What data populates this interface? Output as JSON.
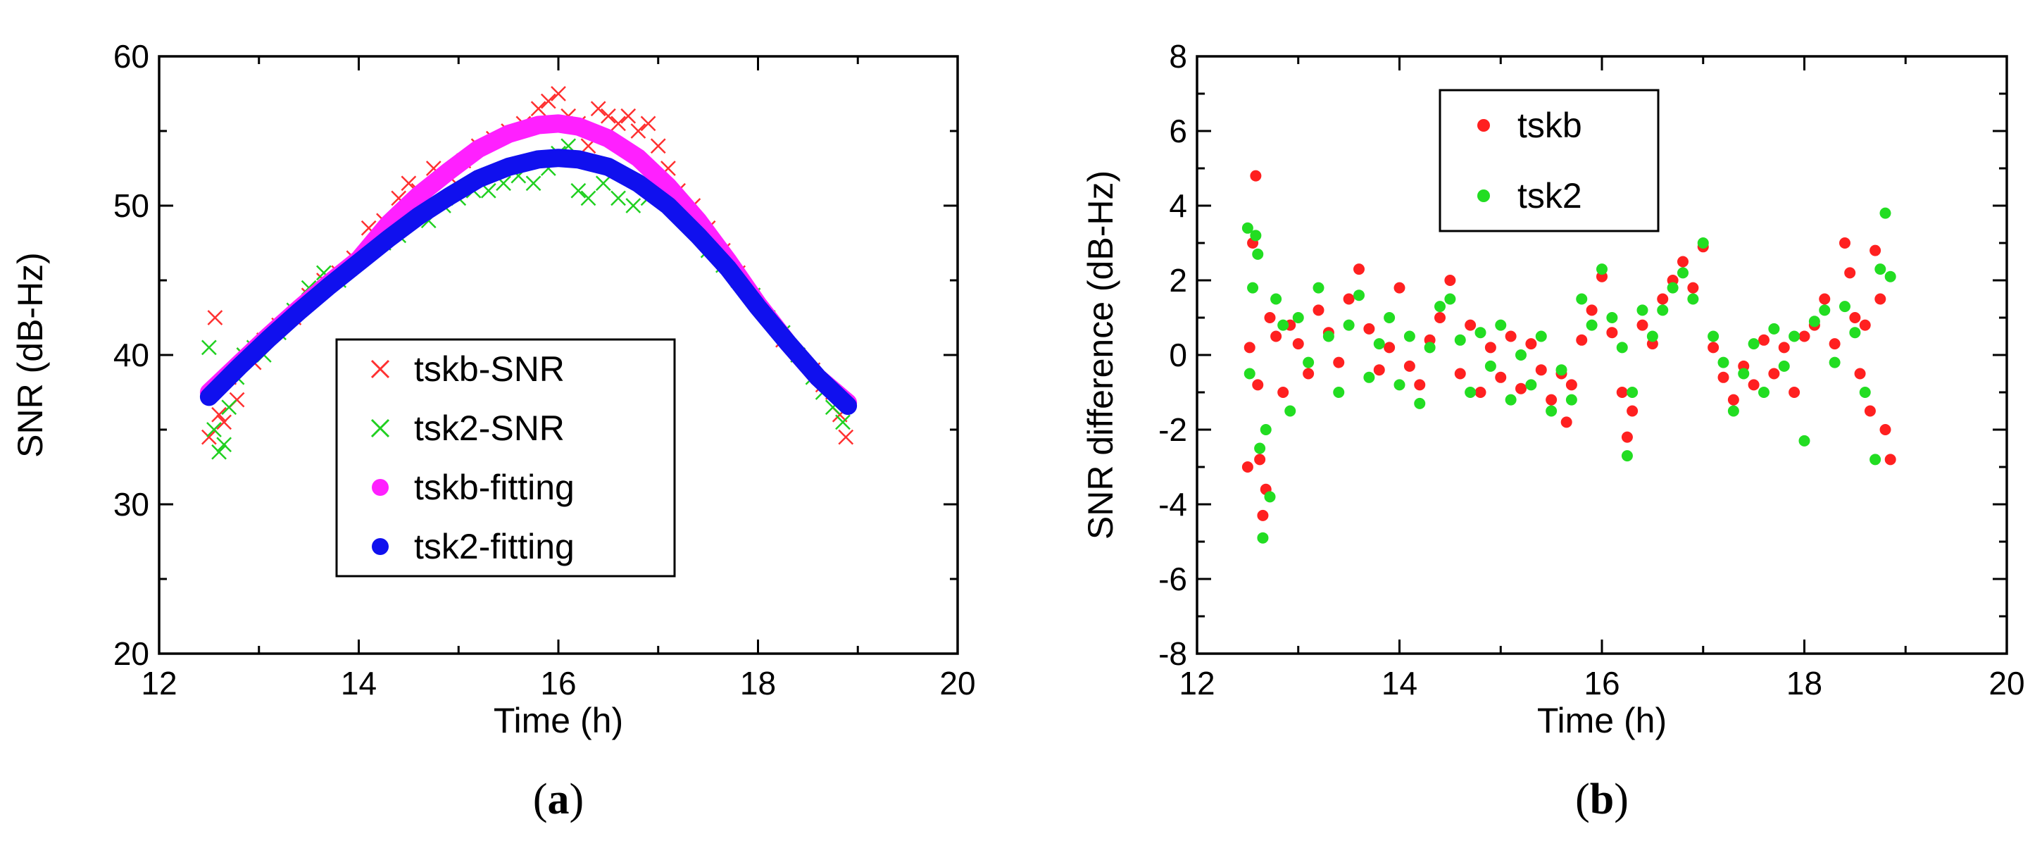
{
  "figure": {
    "panel_labels": [
      "a",
      "b"
    ]
  },
  "chart_data": [
    {
      "id": "a",
      "type": "scatter",
      "panel_label": "a",
      "xlabel": "Time (h)",
      "ylabel": "SNR (dB-Hz)",
      "xlim": [
        12,
        20
      ],
      "ylim": [
        20,
        60
      ],
      "xticks": [
        12,
        14,
        16,
        18,
        20
      ],
      "yticks": [
        20,
        30,
        40,
        50,
        60
      ],
      "legend_position": "center-right",
      "series": [
        {
          "name": "tskb-SNR",
          "marker": "x",
          "color": "#ff3030",
          "x": [
            12.5,
            12.56,
            12.6,
            12.65,
            12.7,
            12.78,
            12.85,
            12.95,
            13.05,
            13.2,
            13.35,
            13.5,
            13.65,
            13.8,
            13.95,
            14.1,
            14.25,
            14.4,
            14.5,
            14.6,
            14.75,
            14.9,
            15.05,
            15.2,
            15.35,
            15.5,
            15.65,
            15.8,
            15.9,
            16.0,
            16.1,
            16.2,
            16.3,
            16.4,
            16.5,
            16.6,
            16.7,
            16.8,
            16.9,
            17.0,
            17.1,
            17.2,
            17.35,
            17.5,
            17.65,
            17.8,
            17.95,
            18.1,
            18.25,
            18.4,
            18.55,
            18.65,
            18.75,
            18.82,
            18.88
          ],
          "y": [
            34.5,
            42.5,
            36.0,
            35.5,
            38.5,
            37.0,
            40.0,
            39.5,
            41.0,
            42.0,
            42.5,
            44.0,
            45.0,
            45.5,
            46.5,
            48.5,
            49.0,
            50.5,
            51.5,
            51.0,
            52.5,
            52.0,
            53.0,
            54.0,
            54.5,
            55.0,
            55.5,
            56.5,
            57.0,
            57.5,
            56.0,
            55.5,
            54.0,
            56.5,
            56.0,
            55.5,
            56.0,
            55.0,
            55.5,
            54.0,
            52.5,
            51.0,
            50.0,
            48.5,
            47.0,
            45.5,
            44.0,
            42.5,
            41.0,
            40.0,
            39.0,
            38.0,
            37.5,
            36.0,
            34.5
          ]
        },
        {
          "name": "tsk2-SNR",
          "marker": "x",
          "color": "#20d020",
          "x": [
            12.5,
            12.55,
            12.6,
            12.65,
            12.7,
            12.78,
            12.85,
            12.95,
            13.05,
            13.2,
            13.35,
            13.5,
            13.65,
            13.8,
            13.95,
            14.1,
            14.25,
            14.4,
            14.55,
            14.7,
            14.85,
            15.0,
            15.15,
            15.3,
            15.45,
            15.6,
            15.75,
            15.9,
            16.0,
            16.1,
            16.2,
            16.3,
            16.45,
            16.6,
            16.75,
            16.9,
            17.05,
            17.2,
            17.35,
            17.5,
            17.65,
            17.8,
            17.95,
            18.1,
            18.25,
            18.4,
            18.55,
            18.65,
            18.75,
            18.85
          ],
          "y": [
            40.5,
            35.0,
            33.5,
            34.0,
            36.5,
            38.5,
            40.0,
            40.5,
            40.0,
            41.5,
            43.0,
            44.5,
            45.5,
            45.0,
            46.0,
            47.0,
            47.5,
            48.0,
            49.5,
            49.0,
            50.0,
            50.5,
            51.0,
            51.0,
            51.5,
            52.0,
            51.5,
            52.5,
            53.5,
            54.0,
            51.0,
            50.5,
            51.5,
            50.5,
            50.0,
            50.5,
            51.0,
            49.5,
            48.5,
            47.0,
            46.0,
            45.0,
            44.0,
            42.5,
            41.5,
            40.0,
            38.5,
            37.5,
            36.5,
            35.5
          ]
        },
        {
          "name": "tskb-fitting",
          "marker": "line",
          "color": "#ff20ff",
          "x": [
            12.5,
            12.8,
            13.1,
            13.4,
            13.7,
            14.0,
            14.3,
            14.6,
            14.9,
            15.2,
            15.5,
            15.8,
            16.0,
            16.2,
            16.5,
            16.8,
            17.1,
            17.4,
            17.7,
            18.0,
            18.3,
            18.6,
            18.9
          ],
          "y": [
            37.5,
            39.4,
            41.3,
            43.1,
            44.8,
            46.4,
            48.8,
            50.7,
            52.3,
            53.8,
            54.8,
            55.4,
            55.5,
            55.3,
            54.5,
            53.2,
            51.3,
            49.0,
            46.3,
            43.4,
            40.8,
            38.5,
            36.8
          ]
        },
        {
          "name": "tsk2-fitting",
          "marker": "line",
          "color": "#1010ee",
          "x": [
            12.5,
            12.8,
            13.1,
            13.4,
            13.7,
            14.0,
            14.3,
            14.6,
            14.9,
            15.2,
            15.5,
            15.8,
            16.0,
            16.2,
            16.5,
            16.8,
            17.1,
            17.4,
            17.7,
            18.0,
            18.3,
            18.6,
            18.9
          ],
          "y": [
            37.2,
            39.2,
            41.1,
            42.9,
            44.6,
            46.2,
            47.8,
            49.3,
            50.6,
            51.8,
            52.6,
            53.1,
            53.2,
            53.1,
            52.6,
            51.5,
            50.0,
            48.0,
            45.8,
            43.2,
            40.8,
            38.5,
            36.6
          ]
        }
      ]
    },
    {
      "id": "b",
      "type": "scatter",
      "panel_label": "b",
      "xlabel": "Time (h)",
      "ylabel": "SNR difference (dB-Hz)",
      "xlim": [
        12,
        20
      ],
      "ylim": [
        -8,
        8
      ],
      "xticks": [
        12,
        14,
        16,
        18,
        20
      ],
      "yticks": [
        -8,
        -6,
        -4,
        -2,
        0,
        2,
        4,
        6,
        8
      ],
      "legend_position": "top-center",
      "series": [
        {
          "name": "tskb",
          "marker": "dot",
          "color": "#ff2020",
          "x": [
            12.5,
            12.52,
            12.55,
            12.58,
            12.6,
            12.62,
            12.65,
            12.68,
            12.72,
            12.78,
            12.85,
            12.92,
            13.0,
            13.1,
            13.2,
            13.3,
            13.4,
            13.5,
            13.6,
            13.7,
            13.8,
            13.9,
            14.0,
            14.1,
            14.2,
            14.3,
            14.4,
            14.5,
            14.6,
            14.7,
            14.8,
            14.9,
            15.0,
            15.1,
            15.2,
            15.3,
            15.4,
            15.5,
            15.6,
            15.65,
            15.7,
            15.8,
            15.9,
            16.0,
            16.1,
            16.2,
            16.25,
            16.3,
            16.4,
            16.5,
            16.6,
            16.7,
            16.8,
            16.9,
            17.0,
            17.1,
            17.2,
            17.3,
            17.4,
            17.5,
            17.6,
            17.7,
            17.8,
            17.9,
            18.0,
            18.1,
            18.2,
            18.3,
            18.4,
            18.45,
            18.5,
            18.55,
            18.6,
            18.65,
            18.7,
            18.75,
            18.8,
            18.85
          ],
          "y": [
            -3.0,
            0.2,
            3.0,
            4.8,
            -0.8,
            -2.8,
            -4.3,
            -3.6,
            1.0,
            0.5,
            -1.0,
            0.8,
            0.3,
            -0.5,
            1.2,
            0.6,
            -0.2,
            1.5,
            2.3,
            0.7,
            -0.4,
            0.2,
            1.8,
            -0.3,
            -0.8,
            0.4,
            1.0,
            2.0,
            -0.5,
            0.8,
            -1.0,
            0.2,
            -0.6,
            0.5,
            -0.9,
            0.3,
            -0.4,
            -1.2,
            -0.5,
            -1.8,
            -0.8,
            0.4,
            1.2,
            2.1,
            0.6,
            -1.0,
            -2.2,
            -1.5,
            0.8,
            0.3,
            1.5,
            2.0,
            2.5,
            1.8,
            2.9,
            0.2,
            -0.6,
            -1.2,
            -0.3,
            -0.8,
            0.4,
            -0.5,
            0.2,
            -1.0,
            0.5,
            0.8,
            1.5,
            0.3,
            3.0,
            2.2,
            1.0,
            -0.5,
            0.8,
            -1.5,
            2.8,
            1.5,
            -2.0,
            -2.8
          ]
        },
        {
          "name": "tsk2",
          "marker": "dot",
          "color": "#22dd22",
          "x": [
            12.5,
            12.52,
            12.55,
            12.58,
            12.6,
            12.62,
            12.65,
            12.68,
            12.72,
            12.78,
            12.85,
            12.92,
            13.0,
            13.1,
            13.2,
            13.3,
            13.4,
            13.5,
            13.6,
            13.7,
            13.8,
            13.9,
            14.0,
            14.1,
            14.2,
            14.3,
            14.4,
            14.5,
            14.6,
            14.7,
            14.8,
            14.9,
            15.0,
            15.1,
            15.2,
            15.3,
            15.4,
            15.5,
            15.6,
            15.7,
            15.8,
            15.9,
            16.0,
            16.1,
            16.2,
            16.25,
            16.3,
            16.4,
            16.5,
            16.6,
            16.7,
            16.8,
            16.9,
            17.0,
            17.1,
            17.2,
            17.3,
            17.4,
            17.5,
            17.6,
            17.7,
            17.8,
            17.9,
            18.0,
            18.1,
            18.2,
            18.3,
            18.4,
            18.5,
            18.6,
            18.7,
            18.75,
            18.8,
            18.85
          ],
          "y": [
            3.4,
            -0.5,
            1.8,
            3.2,
            2.7,
            -2.5,
            -4.9,
            -2.0,
            -3.8,
            1.5,
            0.8,
            -1.5,
            1.0,
            -0.2,
            1.8,
            0.5,
            -1.0,
            0.8,
            1.6,
            -0.6,
            0.3,
            1.0,
            -0.8,
            0.5,
            -1.3,
            0.2,
            1.3,
            1.5,
            0.4,
            -1.0,
            0.6,
            -0.3,
            0.8,
            -1.2,
            0.0,
            -0.8,
            0.5,
            -1.5,
            -0.4,
            -1.2,
            1.5,
            0.8,
            2.3,
            1.0,
            0.2,
            -2.7,
            -1.0,
            1.2,
            0.5,
            1.2,
            1.8,
            2.2,
            1.5,
            3.0,
            0.5,
            -0.2,
            -1.5,
            -0.5,
            0.3,
            -1.0,
            0.7,
            -0.3,
            0.5,
            -2.3,
            0.9,
            1.2,
            -0.2,
            1.3,
            0.6,
            -1.0,
            -2.8,
            2.3,
            3.8,
            2.1
          ]
        }
      ]
    }
  ]
}
